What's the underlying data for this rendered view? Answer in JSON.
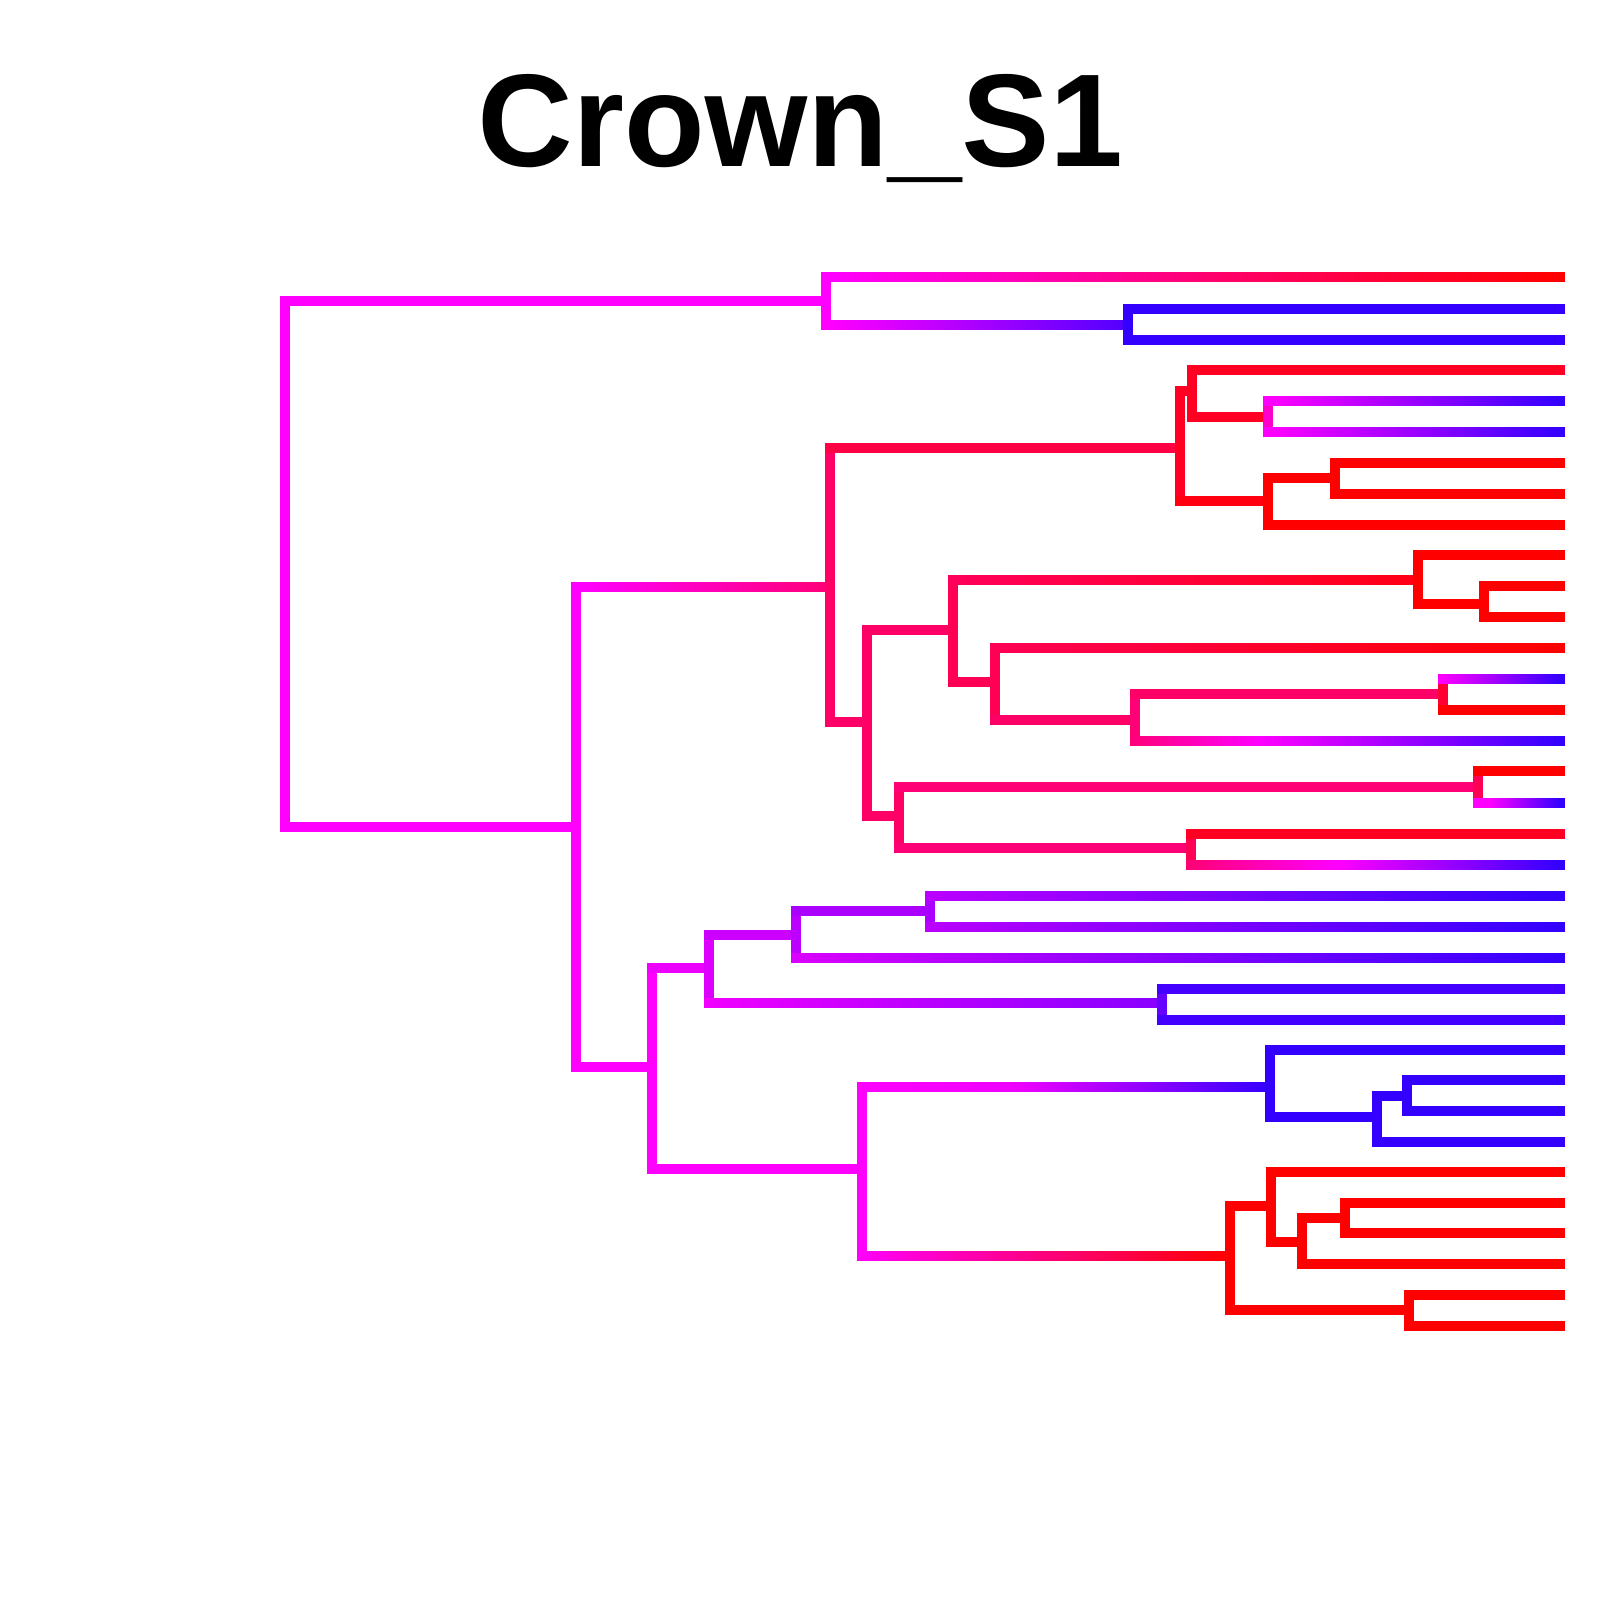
{
  "title": "Crown_S1",
  "colors": {
    "background": "#ffffff",
    "red": "#ff0000",
    "magenta": "#ff00ff",
    "blue": "#3300ff",
    "title": "#000000"
  }
}
